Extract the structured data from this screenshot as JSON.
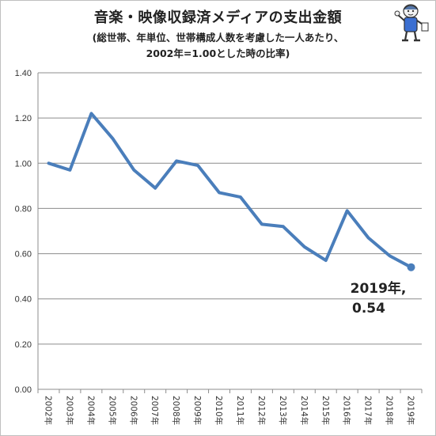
{
  "chart_data": {
    "type": "line",
    "title": "音楽・映像収録済メディアの支出金額",
    "subtitle_line1": "(総世帯、年単位、世帯構成人数を考慮した一人あたり、",
    "subtitle_line2": "2002年=1.00とした時の比率)",
    "categories": [
      "2002年",
      "2003年",
      "2004年",
      "2005年",
      "2006年",
      "2007年",
      "2008年",
      "2009年",
      "2010年",
      "2011年",
      "2012年",
      "2013年",
      "2014年",
      "2015年",
      "2016年",
      "2017年",
      "2018年",
      "2019年"
    ],
    "values": [
      1.0,
      0.97,
      1.22,
      1.11,
      0.97,
      0.89,
      1.01,
      0.99,
      0.87,
      0.85,
      0.73,
      0.72,
      0.63,
      0.57,
      0.79,
      0.67,
      0.59,
      0.54
    ],
    "ylim": [
      0,
      1.4
    ],
    "yticks": [
      "0.00",
      "0.20",
      "0.40",
      "0.60",
      "0.80",
      "1.00",
      "1.20",
      "1.40"
    ],
    "grid": true,
    "line_color": "#4a7ebb",
    "annotation": {
      "line1": "2019年,",
      "line2": "0.54"
    }
  }
}
